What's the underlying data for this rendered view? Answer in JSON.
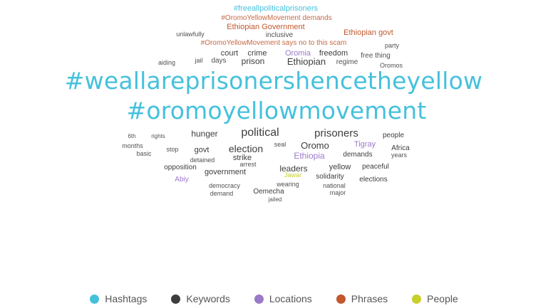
{
  "colors": {
    "hashtag": "#45c1dc",
    "keyword": "#3d3d3d",
    "location": "#9b79c9",
    "phrase": "#c2582e",
    "people": "#c9cf2b"
  },
  "words": [
    {
      "text": "#freeallpoliticalprisoners",
      "cat": "hashtag"
    },
    {
      "text": "#OromoYellowMovement demands",
      "cat": "phrase"
    },
    {
      "text": "Ethiopian Government",
      "cat": "phrase"
    },
    {
      "text": "Ethiopian govt",
      "cat": "phrase"
    },
    {
      "text": "unlawfully",
      "cat": "keyword"
    },
    {
      "text": "inclusive",
      "cat": "keyword"
    },
    {
      "text": "#OromoYellowMovement says no to this scam",
      "cat": "phrase"
    },
    {
      "text": "party",
      "cat": "keyword"
    },
    {
      "text": "court",
      "cat": "keyword"
    },
    {
      "text": "crime",
      "cat": "keyword"
    },
    {
      "text": "Oromia",
      "cat": "location"
    },
    {
      "text": "freedom",
      "cat": "keyword"
    },
    {
      "text": "free thing",
      "cat": "keyword"
    },
    {
      "text": "jail",
      "cat": "keyword"
    },
    {
      "text": "days",
      "cat": "keyword"
    },
    {
      "text": "prison",
      "cat": "keyword"
    },
    {
      "text": "Ethiopian",
      "cat": "keyword"
    },
    {
      "text": "regime",
      "cat": "keyword"
    },
    {
      "text": "aiding",
      "cat": "keyword"
    },
    {
      "text": "Oromos",
      "cat": "keyword"
    },
    {
      "text": "#weallareprisonershencetheyellow",
      "cat": "hashtag"
    },
    {
      "text": "#oromoyellowmovement",
      "cat": "hashtag"
    },
    {
      "text": "hunger",
      "cat": "keyword"
    },
    {
      "text": "political",
      "cat": "keyword"
    },
    {
      "text": "prisoners",
      "cat": "keyword"
    },
    {
      "text": "people",
      "cat": "keyword"
    },
    {
      "text": "6th",
      "cat": "keyword"
    },
    {
      "text": "rights",
      "cat": "keyword"
    },
    {
      "text": "months",
      "cat": "keyword"
    },
    {
      "text": "seal",
      "cat": "keyword"
    },
    {
      "text": "Oromo",
      "cat": "keyword"
    },
    {
      "text": "Tigray",
      "cat": "location"
    },
    {
      "text": "stop",
      "cat": "keyword"
    },
    {
      "text": "govt",
      "cat": "keyword"
    },
    {
      "text": "election",
      "cat": "keyword"
    },
    {
      "text": "Africa",
      "cat": "keyword"
    },
    {
      "text": "basic",
      "cat": "keyword"
    },
    {
      "text": "strike",
      "cat": "keyword"
    },
    {
      "text": "Ethiopia",
      "cat": "location"
    },
    {
      "text": "demands",
      "cat": "keyword"
    },
    {
      "text": "years",
      "cat": "keyword"
    },
    {
      "text": "detained",
      "cat": "keyword"
    },
    {
      "text": "arrest",
      "cat": "keyword"
    },
    {
      "text": "opposition",
      "cat": "keyword"
    },
    {
      "text": "leaders",
      "cat": "keyword"
    },
    {
      "text": "yellow",
      "cat": "keyword"
    },
    {
      "text": "peaceful",
      "cat": "keyword"
    },
    {
      "text": "government",
      "cat": "keyword"
    },
    {
      "text": "Jawar",
      "cat": "people"
    },
    {
      "text": "solidarity",
      "cat": "keyword"
    },
    {
      "text": "Abiy",
      "cat": "location"
    },
    {
      "text": "elections",
      "cat": "keyword"
    },
    {
      "text": "democracy",
      "cat": "keyword"
    },
    {
      "text": "wearing",
      "cat": "keyword"
    },
    {
      "text": "national",
      "cat": "keyword"
    },
    {
      "text": "demand",
      "cat": "keyword"
    },
    {
      "text": "Oemecha",
      "cat": "keyword"
    },
    {
      "text": "major",
      "cat": "keyword"
    },
    {
      "text": "jailed",
      "cat": "keyword"
    }
  ],
  "legend": [
    {
      "label": "Hashtags",
      "cat": "hashtag"
    },
    {
      "label": "Keywords",
      "cat": "keyword"
    },
    {
      "label": "Locations",
      "cat": "location"
    },
    {
      "label": "Phrases",
      "cat": "phrase"
    },
    {
      "label": "People",
      "cat": "people"
    }
  ]
}
